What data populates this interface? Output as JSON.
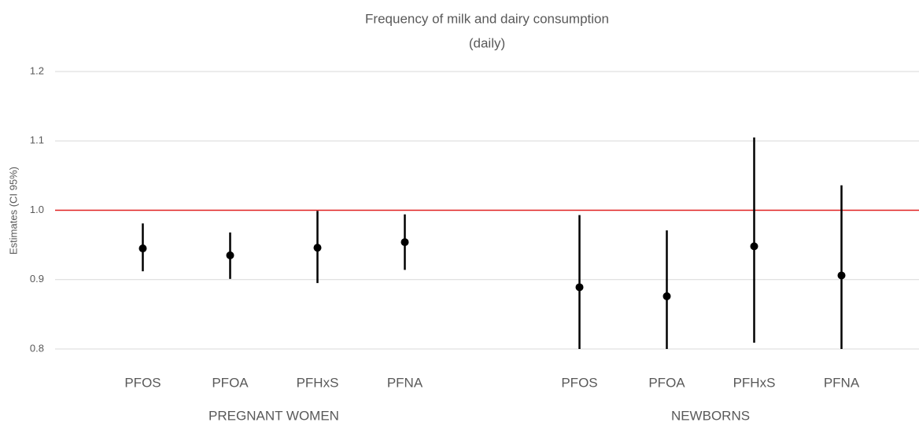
{
  "chart_data": {
    "type": "errorbar",
    "title": "Frequency of milk and dairy consumption",
    "subtitle": "(daily)",
    "y_label": "Estimates (CI 95%)",
    "ylim": [
      0.8,
      1.2
    ],
    "yticks": [
      0.8,
      0.9,
      {
        "value": 1,
        "label": "1.0"
      },
      1.1,
      1.2
    ],
    "grid": true,
    "reference_line": {
      "value": 1,
      "color": "#e02020"
    },
    "color": "#000000",
    "groups": [
      {
        "name": "PREGNANT WOMEN",
        "categories": [
          "PFOS",
          "PFOA",
          "PFHxS",
          "PFNA"
        ],
        "values": [
          0.945,
          0.935,
          0.946,
          0.954
        ],
        "lower": [
          0.912,
          0.901,
          0.895,
          0.914
        ],
        "upper": [
          0.981,
          0.968,
          0.999,
          0.994
        ]
      },
      {
        "name": "NEWBORNS",
        "categories": [
          "PFOS",
          "PFOA",
          "PFHxS",
          "PFNA"
        ],
        "values": [
          0.889,
          0.876,
          0.948,
          0.906
        ],
        "lower": [
          0.8,
          0.8,
          0.809,
          0.8
        ],
        "upper": [
          0.993,
          0.971,
          1.105,
          1.036
        ]
      }
    ]
  }
}
